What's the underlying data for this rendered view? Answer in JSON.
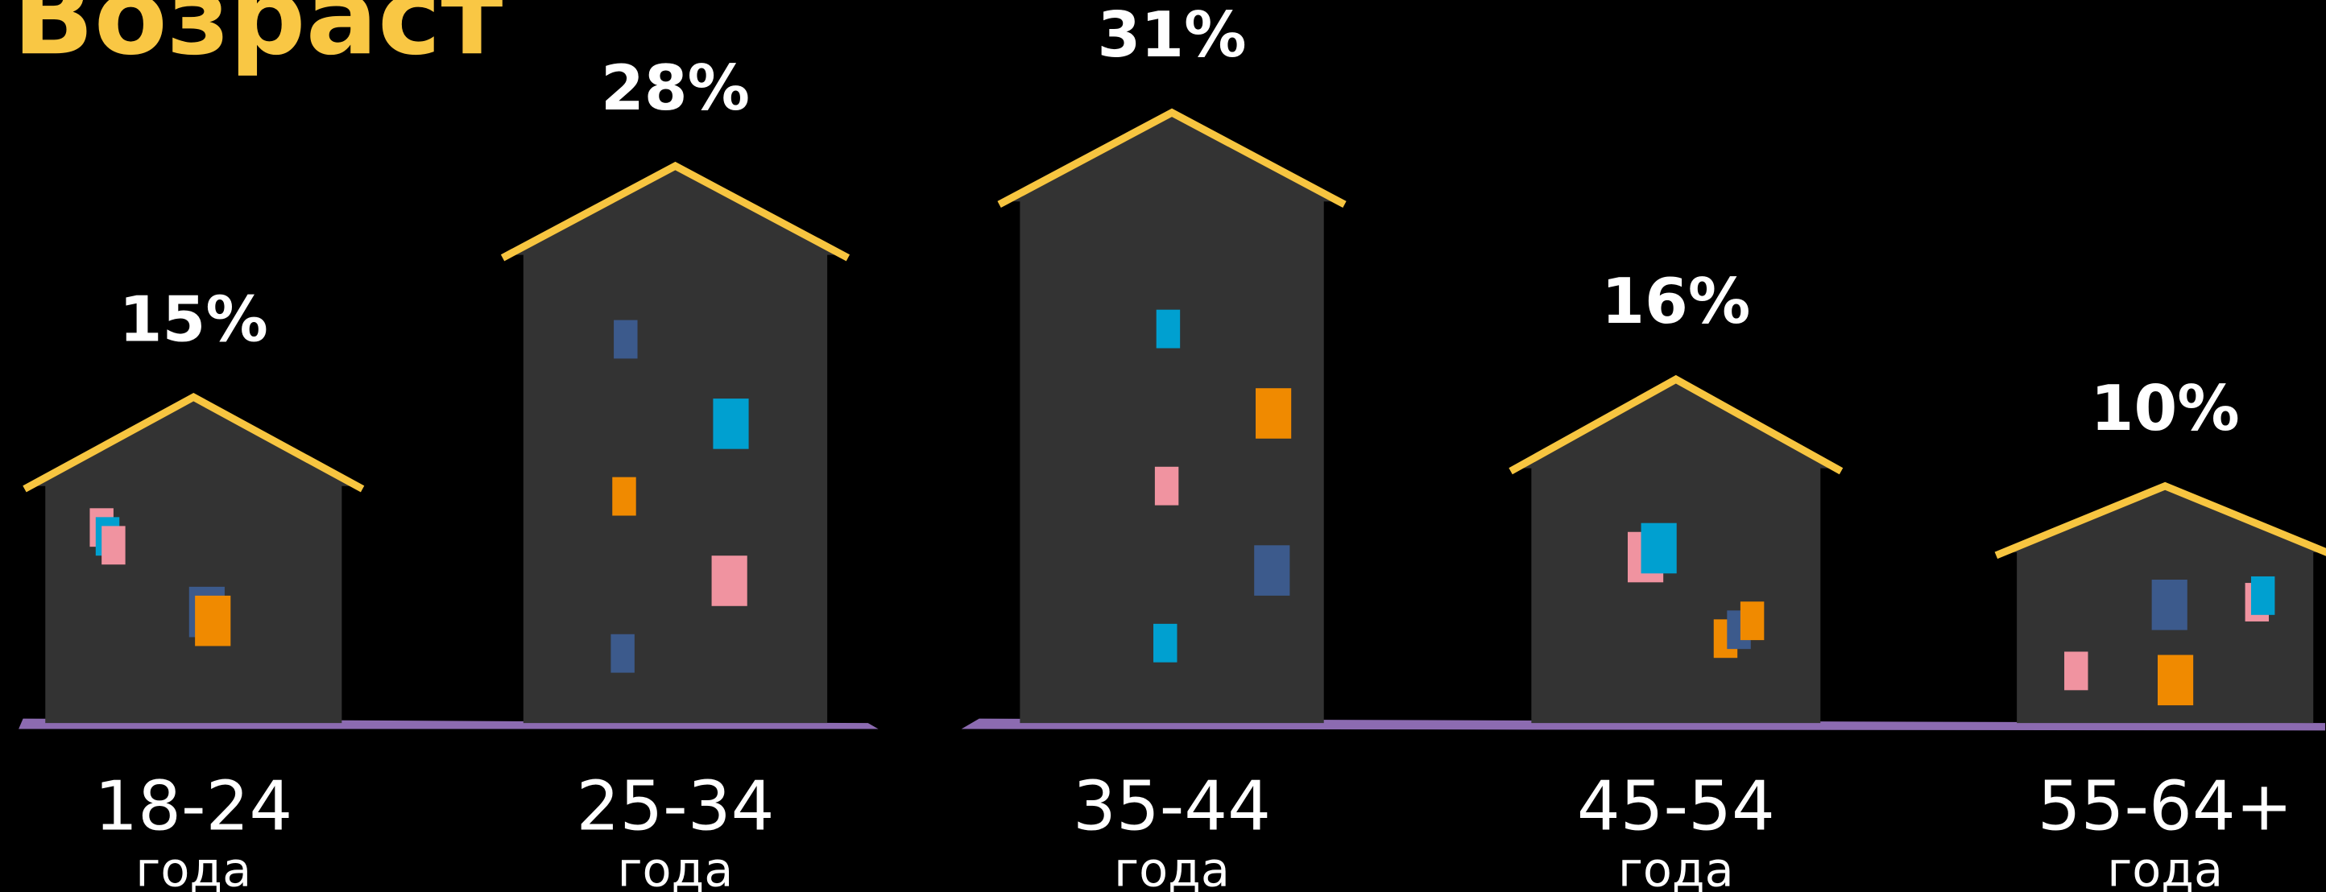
{
  "chart_data": {
    "type": "pictorial-bar",
    "title": "Возраст",
    "categories": [
      "18-24",
      "25-34",
      "35-44",
      "45-54",
      "55-64+"
    ],
    "category_sublabels": [
      "года",
      "года",
      "года",
      "года",
      "года"
    ],
    "values": [
      15,
      28,
      31,
      16,
      10
    ],
    "value_labels": [
      "15%",
      "28%",
      "31%",
      "16%",
      "10%"
    ],
    "color": "#333333",
    "roof_color": "#f7c540",
    "ground_color": "#8c6bb1"
  }
}
